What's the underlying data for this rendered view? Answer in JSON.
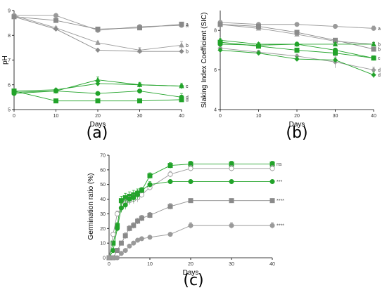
{
  "chart_data": [
    {
      "type": "line",
      "panel_label": "(a)",
      "xlabel": "Days",
      "ylabel": "pH",
      "xlim": [
        0,
        40
      ],
      "ylim": [
        5,
        9
      ],
      "xticks": [
        0,
        10,
        20,
        30,
        40
      ],
      "yticks": [
        5,
        6,
        7,
        8,
        9
      ],
      "x": [
        0,
        10,
        20,
        30,
        40
      ],
      "grid": false,
      "series": [
        {
          "values": [
            8.8,
            8.8,
            8.2,
            8.35,
            8.4
          ],
          "errors": [
            0.05,
            0.06,
            0.08,
            0.05,
            0.06
          ],
          "marker": "circle",
          "color": "#9a9a9a",
          "end_label": "a"
        },
        {
          "values": [
            8.75,
            8.6,
            8.25,
            8.3,
            8.45
          ],
          "errors": [
            0.05,
            0.05,
            0.06,
            0.06,
            0.05
          ],
          "marker": "square",
          "color": "#8a8a8a",
          "end_label": "a"
        },
        {
          "values": [
            8.8,
            8.3,
            7.7,
            7.4,
            7.6
          ],
          "errors": [
            0.05,
            0.05,
            0.06,
            0.1,
            0.15
          ],
          "marker": "triangle",
          "color": "#9a9a9a",
          "end_label": "b"
        },
        {
          "values": [
            8.75,
            8.25,
            7.4,
            7.35,
            7.35
          ],
          "errors": [
            0.05,
            0.05,
            0.05,
            0.05,
            0.05
          ],
          "marker": "diamond",
          "color": "#8a8a8a",
          "end_label": "b"
        },
        {
          "values": [
            5.7,
            5.75,
            6.2,
            6.0,
            5.95
          ],
          "errors": [
            0.05,
            0.08,
            0.12,
            0.1,
            0.12
          ],
          "marker": "triangle",
          "color": "#22a32a",
          "end_label": "c"
        },
        {
          "values": [
            5.75,
            5.8,
            6.05,
            6.0,
            5.95
          ],
          "errors": [
            0.05,
            0.05,
            0.08,
            0.06,
            0.06
          ],
          "marker": "diamond",
          "color": "#22a32a",
          "end_label": "c"
        },
        {
          "values": [
            5.65,
            5.75,
            5.65,
            5.75,
            5.5
          ],
          "errors": [
            0.05,
            0.06,
            0.06,
            0.06,
            0.15
          ],
          "marker": "circle",
          "color": "#22a32a",
          "end_label": "d"
        },
        {
          "values": [
            5.75,
            5.35,
            5.35,
            5.35,
            5.4
          ],
          "errors": [
            0.04,
            0.04,
            0.04,
            0.04,
            0.04
          ],
          "marker": "square",
          "color": "#22a32a",
          "end_label": "d"
        }
      ]
    },
    {
      "type": "line",
      "panel_label": "(b)",
      "xlabel": "Days",
      "ylabel": "Slaking Index Coefficient (SIC)",
      "xlim": [
        0,
        40
      ],
      "ylim": [
        4,
        9
      ],
      "xticks": [
        0,
        10,
        20,
        30,
        40
      ],
      "yticks": [
        4,
        6,
        8
      ],
      "x": [
        0,
        10,
        20,
        30,
        40
      ],
      "grid": false,
      "series": [
        {
          "values": [
            8.4,
            8.3,
            8.3,
            8.2,
            8.1
          ],
          "errors": [
            0.08,
            0.08,
            0.08,
            0.1,
            0.12
          ],
          "marker": "circle",
          "color": "#9a9a9a",
          "end_label": "a"
        },
        {
          "values": [
            8.3,
            8.1,
            7.8,
            7.45,
            7.3
          ],
          "errors": [
            0.08,
            0.08,
            0.08,
            0.1,
            0.1
          ],
          "marker": "triangle",
          "color": "#9a9a9a",
          "end_label": "b"
        },
        {
          "values": [
            8.3,
            8.2,
            7.9,
            7.5,
            7.05
          ],
          "errors": [
            0.08,
            0.08,
            0.08,
            0.1,
            0.1
          ],
          "marker": "square",
          "color": "#8a8a8a",
          "end_label": "b"
        },
        {
          "values": [
            7.4,
            7.2,
            7.0,
            6.85,
            6.6
          ],
          "errors": [
            0.1,
            0.1,
            0.1,
            0.12,
            0.12
          ],
          "marker": "square",
          "color": "#22a32a",
          "end_label": "c"
        },
        {
          "values": [
            7.1,
            6.9,
            6.7,
            6.4,
            6.0
          ],
          "errors": [
            0.1,
            0.1,
            0.1,
            0.3,
            0.15
          ],
          "marker": "diamond",
          "color": "#9a9a9a",
          "end_label": "d"
        },
        {
          "values": [
            7.0,
            6.85,
            6.55,
            6.5,
            5.75
          ],
          "errors": [
            0.1,
            0.1,
            0.12,
            0.12,
            0.15
          ],
          "marker": "diamond",
          "color": "#22a32a",
          "end_label": "d"
        },
        {
          "values": [
            7.5,
            7.3,
            7.3,
            7.3,
            7.3
          ],
          "errors": [
            0.08,
            0.08,
            0.08,
            0.08,
            0.08
          ],
          "marker": "triangle",
          "color": "#22a32a",
          "end_label": ""
        },
        {
          "values": [
            7.3,
            7.25,
            7.3,
            7.0,
            6.6
          ],
          "errors": [
            0.08,
            0.08,
            0.1,
            0.1,
            0.1
          ],
          "marker": "circle",
          "color": "#22a32a",
          "end_label": ""
        }
      ]
    },
    {
      "type": "line",
      "panel_label": "(c)",
      "xlabel": "Days",
      "ylabel": "Germination ratio (%)",
      "xlim": [
        0,
        40
      ],
      "ylim": [
        0,
        70
      ],
      "xticks": [
        0,
        10,
        20,
        30,
        40
      ],
      "yticks": [
        0,
        10,
        20,
        30,
        40,
        50,
        60,
        70
      ],
      "grid": false,
      "series": [
        {
          "x": [
            0,
            1,
            2,
            3,
            4,
            5,
            6,
            7,
            8,
            10,
            15,
            20,
            30,
            40
          ],
          "values": [
            0,
            10,
            22,
            39,
            41,
            42,
            43,
            44,
            46,
            56,
            63,
            64,
            64,
            64
          ],
          "errors": [
            0,
            1,
            2,
            3,
            3,
            3,
            3,
            3,
            2,
            2,
            2,
            2,
            2,
            2
          ],
          "marker": "square",
          "color": "#22a32a",
          "end_label": "ns"
        },
        {
          "x": [
            0,
            1,
            2,
            3,
            4,
            5,
            6,
            7,
            8,
            10,
            15,
            20,
            30,
            40
          ],
          "values": [
            0,
            16,
            30,
            34,
            37,
            39,
            40,
            41,
            43,
            48,
            57,
            61,
            61,
            61
          ],
          "errors": [
            0,
            1,
            2,
            3,
            3,
            3,
            3,
            3,
            2,
            2,
            2,
            2,
            2,
            2
          ],
          "marker": "circle-open",
          "color": "#9a9a9a",
          "end_label": ""
        },
        {
          "x": [
            0,
            1,
            2,
            3,
            4,
            5,
            6,
            7,
            8,
            10,
            15,
            20,
            30,
            40
          ],
          "values": [
            0,
            5,
            20,
            34,
            36,
            40,
            41,
            43,
            46,
            50,
            52,
            52,
            52,
            52
          ],
          "errors": [
            0,
            1,
            2,
            3,
            3,
            3,
            3,
            3,
            2,
            2,
            1,
            1,
            1,
            1
          ],
          "marker": "circle",
          "color": "#22a32a",
          "end_label": "***"
        },
        {
          "x": [
            0,
            1,
            2,
            3,
            4,
            5,
            6,
            7,
            8,
            10,
            15,
            20,
            30,
            40
          ],
          "values": [
            0,
            0,
            5,
            10,
            15,
            20,
            22,
            25,
            27,
            29,
            35,
            39,
            39,
            39
          ],
          "errors": [
            0,
            0,
            1,
            1,
            2,
            2,
            2,
            2,
            2,
            2,
            2,
            1,
            1,
            1
          ],
          "marker": "square",
          "color": "#8a8a8a",
          "end_label": "****"
        },
        {
          "x": [
            0,
            1,
            2,
            3,
            4,
            5,
            6,
            7,
            8,
            10,
            15,
            20,
            30,
            40
          ],
          "values": [
            0,
            0,
            0,
            3,
            5,
            8,
            10,
            12,
            13,
            14,
            16,
            22,
            22,
            22
          ],
          "errors": [
            0,
            0,
            0,
            1,
            1,
            1,
            1,
            1,
            1,
            1,
            1,
            2,
            2,
            2
          ],
          "marker": "circle",
          "color": "#9a9a9a",
          "end_label": "****"
        }
      ]
    }
  ]
}
